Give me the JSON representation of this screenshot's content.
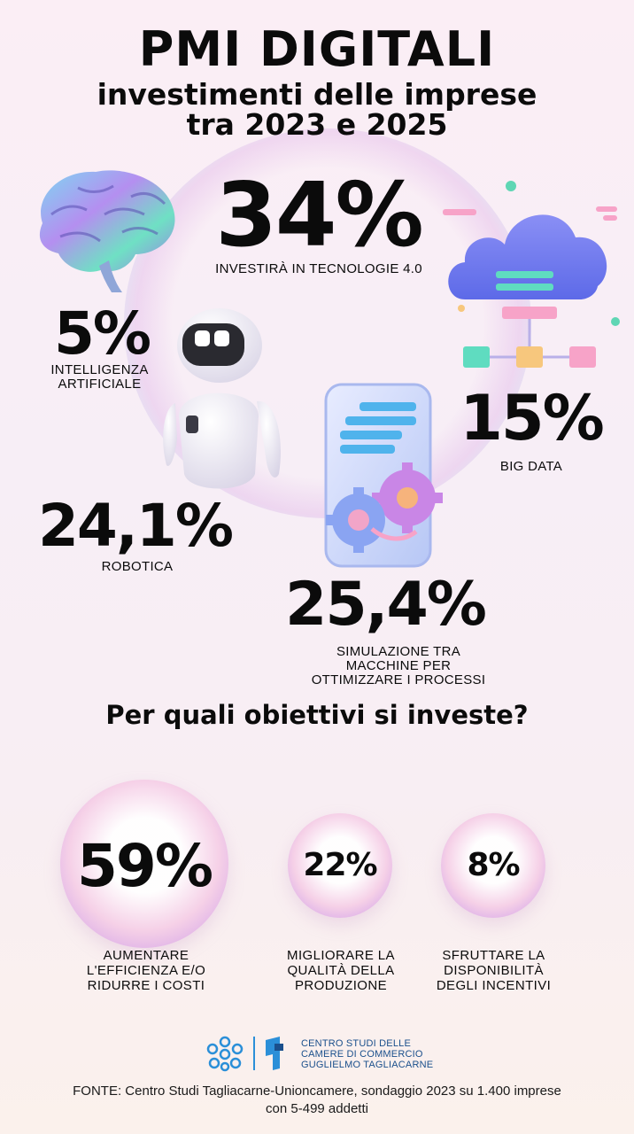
{
  "header": {
    "title": "PMI DIGITALI",
    "subtitle_line1": "investimenti delle imprese",
    "subtitle_line2": "tra 2023 e 2025"
  },
  "stats": {
    "main": {
      "value": "34%",
      "label": "INVESTIRÀ IN TECNOLOGIE 4.0"
    },
    "ai": {
      "value": "5%",
      "label_line1": "INTELLIGENZA",
      "label_line2": "ARTIFICIALE"
    },
    "bigdata": {
      "value": "15%",
      "label": "BIG DATA"
    },
    "robotica": {
      "value": "24,1%",
      "label": "ROBOTICA"
    },
    "simulazione": {
      "value": "25,4%",
      "label_line1": "SIMULAZIONE TRA",
      "label_line2": "MACCHINE PER",
      "label_line3": "OTTIMIZZARE I PROCESSI"
    }
  },
  "objectives": {
    "question": "Per quali obiettivi si investe?",
    "items": [
      {
        "value": "59%",
        "line1": "AUMENTARE",
        "line2": "L'EFFICIENZA E/O",
        "line3": "RIDURRE I COSTI"
      },
      {
        "value": "22%",
        "line1": "MIGLIORARE LA",
        "line2": "QUALITÀ DELLA",
        "line3": "PRODUZIONE"
      },
      {
        "value": "8%",
        "line1": "SFRUTTARE LA",
        "line2": "DISPONIBILITÀ",
        "line3": "DEGLI INCENTIVI"
      }
    ]
  },
  "footer": {
    "org_line1": "CENTRO STUDI DELLE",
    "org_line2": "CAMERE DI COMMERCIO",
    "org_line3": "GUGLIELMO TAGLIACARNE",
    "source_line1": "FONTE: Centro Studi Tagliacarne-Unioncamere, sondaggio 2023 su 1.400 imprese",
    "source_line2": "con 5-499 addetti"
  },
  "icons": [
    "brain-illustration",
    "robot-illustration",
    "cloud-data-illustration",
    "phone-gears-illustration",
    "logo-camere-commercio",
    "logo-tagliacarne"
  ],
  "colors": {
    "text": "#0b0b0b",
    "accent_blue": "#1a4f8c",
    "cloud": "#6f7ff0",
    "teal": "#5fdcc0"
  }
}
